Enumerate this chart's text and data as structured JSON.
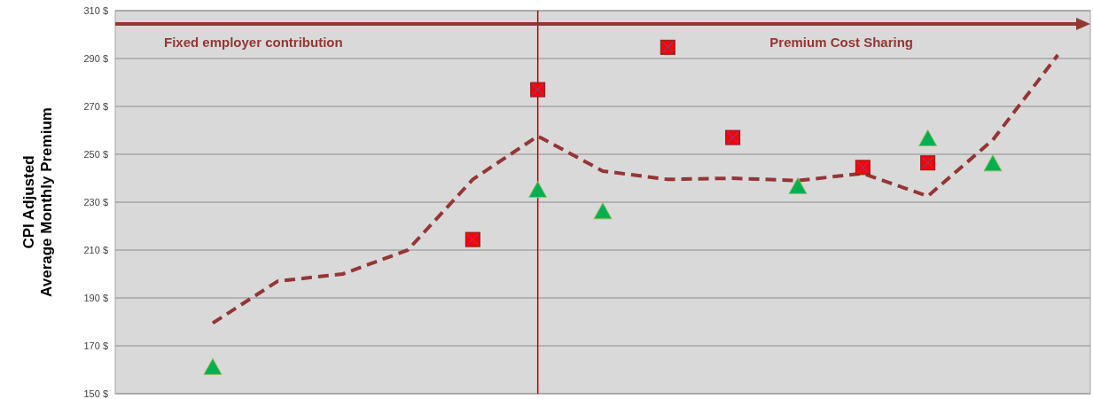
{
  "chart_data": {
    "type": "line",
    "ylabel": "CPI Adjusted\nAverage Monthly Premium",
    "categories": [
      null,
      null,
      null,
      null,
      null,
      null,
      null,
      null,
      null,
      null,
      null,
      null,
      null,
      null,
      null
    ],
    "series": [
      {
        "color": "#943634",
        "line_style": "dashed",
        "marker": "none",
        "values": [
          null,
          179.5,
          197,
          200,
          210,
          239.5,
          257.6,
          243,
          239.5,
          240,
          239,
          242,
          232.5,
          256,
          291.5
        ]
      },
      {
        "type": "scatter",
        "color": "#ff0000",
        "marker": "square",
        "values": [
          null,
          null,
          null,
          null,
          null,
          214.4,
          277,
          null,
          294.7,
          257,
          null,
          244.5,
          246.4,
          null,
          null
        ]
      },
      {
        "type": "scatter",
        "color": "#00b050",
        "marker": "triangle",
        "values": [
          null,
          161,
          null,
          null,
          null,
          null,
          235,
          226,
          null,
          null,
          236.5,
          null,
          256.5,
          246,
          null
        ]
      }
    ],
    "ylim": [
      150,
      310
    ],
    "yticks": [
      {
        "value": 150,
        "label": "150 $"
      },
      {
        "value": 170,
        "label": "170 $"
      },
      {
        "value": 190,
        "label": "190 $"
      },
      {
        "value": 210,
        "label": "210 $"
      },
      {
        "value": 230,
        "label": "230 $"
      },
      {
        "value": 250,
        "label": "250 $"
      },
      {
        "value": 270,
        "label": "270 $"
      },
      {
        "value": 290,
        "label": "290 $"
      },
      {
        "value": 310,
        "label": "310 $"
      }
    ],
    "grid": "y",
    "tick_labels": "y",
    "annotations": [
      "Fixed employer contribution",
      "Premium Cost Sharing"
    ]
  }
}
